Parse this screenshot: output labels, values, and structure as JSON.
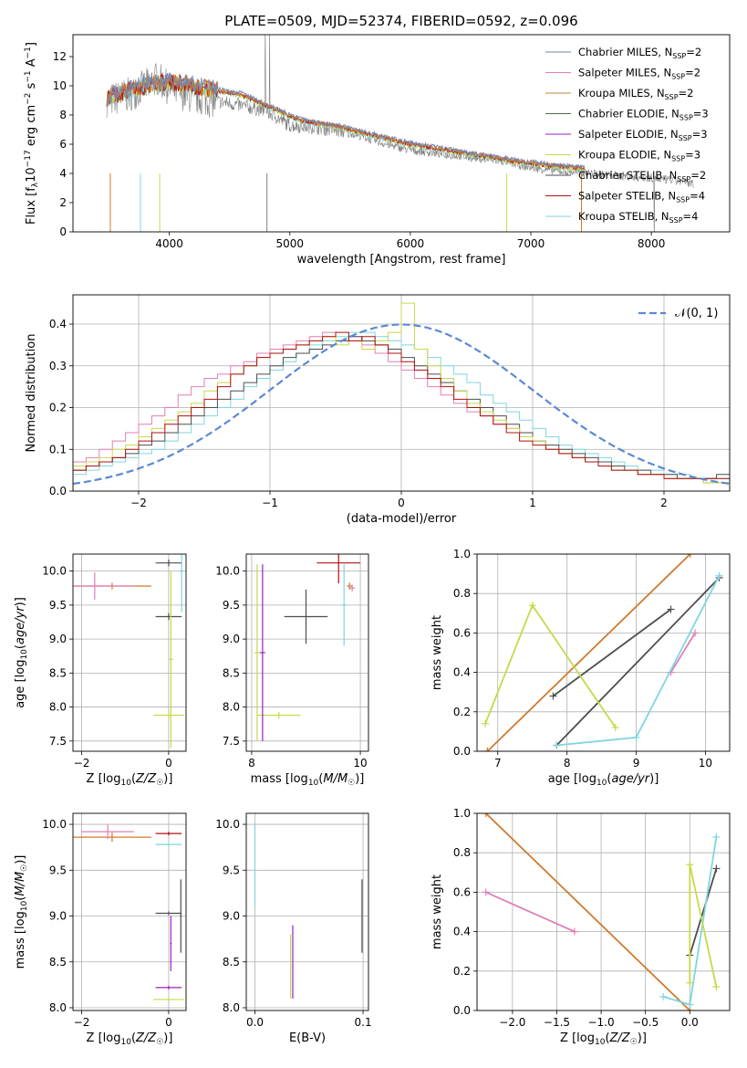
{
  "figure": {
    "title": "PLATE=0509, MJD=52374, FIBERID=0592, z=0.096"
  },
  "colors": {
    "Chabrier MILES": "#6f86b8",
    "Salpeter MILES": "#e07fb4",
    "Kroupa MILES": "#c2853a",
    "Chabrier ELODIE": "#4e6e4e",
    "Salpeter ELODIE": "#9b1fc0",
    "Kroupa ELODIE": "#c8d84a",
    "Chabrier STELIB": "#4d4d4d",
    "Salpeter STELIB": "#b01010",
    "Kroupa STELIB": "#7fd6df",
    "data": "#808080",
    "normal": "#5c88d4",
    "orange": "#d07a2e"
  },
  "chart_data": [
    {
      "id": "spectrum",
      "type": "line",
      "xlabel": "wavelength [Angstrom, rest frame]",
      "ylabel": "Flux [f_λ10^-17 erg cm^-2 s^-1 A^-1]",
      "xlim": [
        3200,
        8650
      ],
      "ylim": [
        0,
        13.5
      ],
      "xticks": [
        "4000",
        "5000",
        "6000",
        "7000",
        "8000"
      ],
      "yticks": [
        "0",
        "2",
        "4",
        "6",
        "8",
        "10",
        "12"
      ],
      "grid": false,
      "legend_position": "upper right",
      "legend": [
        "Chabrier MILES, N_SSP=2",
        "Salpeter MILES, N_SSP=2",
        "Kroupa MILES, N_SSP=2",
        "Chabrier ELODIE, N_SSP=3",
        "Salpeter ELODIE, N_SSP=3",
        "Kroupa ELODIE, N_SSP=3",
        "Chabrier STELIB, N_SSP=2",
        "Salpeter STELIB, N_SSP=4",
        "Kroupa STELIB, N_SSP=4"
      ],
      "data_series": {
        "name": "data",
        "x": [
          3500,
          3700,
          3900,
          4000,
          4200,
          4500,
          4800,
          5000,
          5200,
          5500,
          5800,
          6000,
          6300,
          6600,
          6800,
          7000,
          7200,
          7500,
          7800,
          8000,
          8200,
          8350
        ],
        "y": [
          9.0,
          9.5,
          10.5,
          9.8,
          9.2,
          8.8,
          8.3,
          7.3,
          7.2,
          6.8,
          6.0,
          5.6,
          5.3,
          5.0,
          4.8,
          4.4,
          4.2,
          4.0,
          3.8,
          3.7,
          3.5,
          3.3
        ]
      },
      "model_series": {
        "name": "model",
        "x": [
          3480,
          3700,
          3900,
          4100,
          4300,
          4600,
          4900,
          5100,
          5400,
          5700,
          6000,
          6300,
          6600,
          6900,
          7200,
          7450
        ],
        "y": [
          9.2,
          9.8,
          10.2,
          10.2,
          9.8,
          9.4,
          8.3,
          7.6,
          7.2,
          6.6,
          6.0,
          5.6,
          5.2,
          4.8,
          4.5,
          4.3
        ]
      }
    },
    {
      "id": "residuals",
      "type": "bar",
      "xlabel": "(data-model)/error",
      "ylabel": "Normed distribution",
      "xlim": [
        -2.5,
        2.5
      ],
      "ylim": [
        0,
        0.47
      ],
      "xticks": [
        "−2",
        "−1",
        "0",
        "1",
        "2"
      ],
      "yticks": [
        "0.0",
        "0.1",
        "0.2",
        "0.3",
        "0.4"
      ],
      "grid": true,
      "legend": [
        "𝒩(0, 1)"
      ],
      "bin_centers": [
        -2.45,
        -2.35,
        -2.25,
        -2.15,
        -2.05,
        -1.95,
        -1.85,
        -1.75,
        -1.65,
        -1.55,
        -1.45,
        -1.35,
        -1.25,
        -1.15,
        -1.05,
        -0.95,
        -0.85,
        -0.75,
        -0.65,
        -0.55,
        -0.45,
        -0.35,
        -0.25,
        -0.15,
        -0.05,
        0.05,
        0.15,
        0.25,
        0.35,
        0.45,
        0.55,
        0.65,
        0.75,
        0.85,
        0.95,
        1.05,
        1.15,
        1.25,
        1.35,
        1.45,
        1.55,
        1.65,
        1.75,
        1.85,
        1.95,
        2.05,
        2.15,
        2.25,
        2.35,
        2.45
      ],
      "histograms": [
        {
          "name": "Salpeter MILES",
          "values": [
            0.07,
            0.08,
            0.1,
            0.12,
            0.14,
            0.16,
            0.18,
            0.2,
            0.23,
            0.25,
            0.27,
            0.28,
            0.3,
            0.31,
            0.33,
            0.34,
            0.35,
            0.36,
            0.37,
            0.38,
            0.36,
            0.37,
            0.35,
            0.33,
            0.31,
            0.29,
            0.27,
            0.25,
            0.23,
            0.21,
            0.19,
            0.18,
            0.16,
            0.15,
            0.13,
            0.12,
            0.1,
            0.09,
            0.08,
            0.07,
            0.06,
            0.05,
            0.05,
            0.04,
            0.04,
            0.03,
            0.03,
            0.03,
            0.02,
            0.02
          ]
        },
        {
          "name": "Kroupa STELIB",
          "values": [
            0.04,
            0.05,
            0.06,
            0.07,
            0.08,
            0.09,
            0.1,
            0.12,
            0.14,
            0.16,
            0.18,
            0.2,
            0.22,
            0.25,
            0.27,
            0.29,
            0.31,
            0.33,
            0.35,
            0.36,
            0.37,
            0.38,
            0.38,
            0.37,
            0.36,
            0.35,
            0.34,
            0.32,
            0.3,
            0.28,
            0.26,
            0.23,
            0.21,
            0.19,
            0.17,
            0.15,
            0.13,
            0.11,
            0.1,
            0.09,
            0.08,
            0.07,
            0.06,
            0.05,
            0.05,
            0.04,
            0.04,
            0.03,
            0.03,
            0.03
          ]
        },
        {
          "name": "Chabrier STELIB",
          "values": [
            0.05,
            0.06,
            0.07,
            0.08,
            0.09,
            0.11,
            0.12,
            0.14,
            0.16,
            0.18,
            0.2,
            0.22,
            0.24,
            0.26,
            0.28,
            0.3,
            0.32,
            0.33,
            0.34,
            0.35,
            0.36,
            0.37,
            0.36,
            0.35,
            0.34,
            0.32,
            0.3,
            0.28,
            0.26,
            0.24,
            0.22,
            0.2,
            0.18,
            0.16,
            0.14,
            0.12,
            0.11,
            0.1,
            0.09,
            0.08,
            0.07,
            0.06,
            0.05,
            0.05,
            0.04,
            0.04,
            0.03,
            0.03,
            0.03,
            0.04
          ]
        },
        {
          "name": "Kroupa ELODIE",
          "values": [
            0.06,
            0.07,
            0.08,
            0.1,
            0.11,
            0.13,
            0.15,
            0.17,
            0.19,
            0.21,
            0.24,
            0.26,
            0.28,
            0.3,
            0.32,
            0.33,
            0.34,
            0.35,
            0.36,
            0.37,
            0.35,
            0.36,
            0.34,
            0.36,
            0.38,
            0.45,
            0.34,
            0.3,
            0.27,
            0.24,
            0.21,
            0.19,
            0.17,
            0.15,
            0.13,
            0.12,
            0.1,
            0.09,
            0.08,
            0.07,
            0.06,
            0.05,
            0.05,
            0.04,
            0.04,
            0.03,
            0.03,
            0.03,
            0.02,
            0.02
          ]
        },
        {
          "name": "Salpeter STELIB",
          "values": [
            0.05,
            0.06,
            0.07,
            0.08,
            0.1,
            0.12,
            0.14,
            0.16,
            0.18,
            0.2,
            0.22,
            0.25,
            0.28,
            0.3,
            0.32,
            0.33,
            0.34,
            0.35,
            0.36,
            0.37,
            0.38,
            0.36,
            0.37,
            0.35,
            0.33,
            0.31,
            0.29,
            0.27,
            0.25,
            0.22,
            0.2,
            0.18,
            0.16,
            0.14,
            0.12,
            0.11,
            0.1,
            0.09,
            0.08,
            0.07,
            0.06,
            0.05,
            0.05,
            0.04,
            0.04,
            0.03,
            0.03,
            0.03,
            0.03,
            0.03
          ]
        }
      ],
      "normal_curve": {
        "name": "𝒩(0, 1)",
        "mean": 0,
        "sigma": 1
      }
    },
    {
      "id": "age_vs_Z",
      "type": "scatter",
      "xlabel": "Z [log10(Z/Z☉)]",
      "ylabel": "age [log10(age/yr)]",
      "xlim": [
        -2.2,
        0.4
      ],
      "ylim": [
        7.35,
        10.25
      ],
      "xticks": [
        "−2",
        "0"
      ],
      "yticks": [
        "7.5",
        "8.0",
        "8.5",
        "9.0",
        "9.5",
        "10.0"
      ],
      "grid": true,
      "points": [
        {
          "series": "Kroupa MILES",
          "x": -1.3,
          "y": 9.78,
          "xerr": 0.9,
          "yerr": 0.05
        },
        {
          "series": "Salpeter MILES",
          "x": -1.7,
          "y": 9.78,
          "xerr": 0.9,
          "yerr": 0.2
        },
        {
          "series": "Chabrier STELIB",
          "x": 0.0,
          "y": 10.12,
          "xerr": 0.3,
          "yerr": 0.05
        },
        {
          "series": "Chabrier STELIB",
          "x": 0.0,
          "y": 9.33,
          "xerr": 0.3,
          "yerr": 0.05
        },
        {
          "series": "Kroupa STELIB",
          "x": 0.3,
          "y": 10.0,
          "xerr": 0.05,
          "yerr": 0.6
        },
        {
          "series": "Kroupa ELODIE",
          "x": 0.0,
          "y": 7.88,
          "xerr": 0.35,
          "yerr": 0.05
        },
        {
          "series": "Kroupa ELODIE",
          "x": 0.05,
          "y": 8.7,
          "xerr": 0.05,
          "yerr": 1.3
        }
      ]
    },
    {
      "id": "age_vs_mass",
      "type": "scatter",
      "xlabel": "mass [log10(M/M☉)]",
      "ylabel": "",
      "xlim": [
        7.9,
        10.15
      ],
      "ylim": [
        7.35,
        10.25
      ],
      "xticks": [
        "8",
        "10"
      ],
      "yticks": [
        "7.5",
        "8.0",
        "8.5",
        "9.0",
        "9.5",
        "10.0"
      ],
      "grid": true,
      "points": [
        {
          "series": "Chabrier STELIB",
          "x": 9.0,
          "y": 9.33,
          "xerr": 0.4,
          "yerr": 0.4
        },
        {
          "series": "Salpeter STELIB",
          "x": 9.6,
          "y": 10.12,
          "xerr": 0.4,
          "yerr": 0.3
        },
        {
          "series": "Kroupa ELODIE",
          "x": 8.5,
          "y": 7.88,
          "xerr": 0.4,
          "yerr": 0.05
        },
        {
          "series": "Salpeter MILES",
          "x": 9.85,
          "y": 9.75,
          "xerr": 0.05,
          "yerr": 0.05
        },
        {
          "series": "Kroupa MILES",
          "x": 9.8,
          "y": 9.78,
          "xerr": 0.05,
          "yerr": 0.05
        },
        {
          "series": "Salpeter ELODIE",
          "x": 8.2,
          "y": 8.8,
          "xerr": 0.05,
          "yerr": 1.3
        },
        {
          "series": "Kroupa ELODIE",
          "x": 8.1,
          "y": 8.8,
          "xerr": 0.05,
          "yerr": 1.3
        },
        {
          "series": "Kroupa STELIB",
          "x": 9.7,
          "y": 9.5,
          "xerr": 0.05,
          "yerr": 0.6
        }
      ]
    },
    {
      "id": "weight_vs_age",
      "type": "line",
      "xlabel": "age [log10(age/yr)]",
      "ylabel": "mass weight",
      "xlim": [
        6.7,
        10.35
      ],
      "ylim": [
        0.0,
        1.0
      ],
      "xticks": [
        "7",
        "8",
        "9",
        "10"
      ],
      "yticks": [
        "0.0",
        "0.2",
        "0.4",
        "0.6",
        "0.8",
        "1.0"
      ],
      "grid": true,
      "lines": [
        {
          "series": "Kroupa MILES",
          "x": [
            6.85,
            9.78
          ],
          "y": [
            0.0,
            1.0
          ]
        },
        {
          "series": "Chabrier STELIB",
          "x": [
            7.8,
            9.5
          ],
          "y": [
            0.28,
            0.72
          ]
        },
        {
          "series": "Chabrier STELIB",
          "x": [
            7.85,
            10.2
          ],
          "y": [
            0.03,
            0.88
          ]
        },
        {
          "series": "Salpeter MILES",
          "x": [
            9.5,
            9.85
          ],
          "y": [
            0.4,
            0.6
          ]
        },
        {
          "series": "Kroupa ELODIE",
          "x": [
            6.82,
            7.5,
            8.7
          ],
          "y": [
            0.14,
            0.74,
            0.12
          ]
        },
        {
          "series": "Kroupa STELIB",
          "x": [
            7.85,
            9.0,
            10.2
          ],
          "y": [
            0.03,
            0.07,
            0.89
          ]
        }
      ]
    },
    {
      "id": "mass_vs_Z",
      "type": "scatter",
      "xlabel": "Z [log10(Z/Z☉)]",
      "ylabel": "mass [log10(M/M☉)]",
      "xlim": [
        -2.2,
        0.4
      ],
      "ylim": [
        7.97,
        10.12
      ],
      "xticks": [
        "−2",
        "0"
      ],
      "yticks": [
        "8.0",
        "8.5",
        "9.0",
        "9.5",
        "10.0"
      ],
      "grid": true,
      "points": [
        {
          "series": "Kroupa MILES",
          "x": -1.3,
          "y": 9.86,
          "xerr": 0.9,
          "yerr": 0.05
        },
        {
          "series": "Salpeter MILES",
          "x": -1.4,
          "y": 9.92,
          "xerr": 0.6,
          "yerr": 0.08
        },
        {
          "series": "Salpeter STELIB",
          "x": 0.0,
          "y": 9.9,
          "xerr": 0.3,
          "yerr": 0.02
        },
        {
          "series": "Kroupa STELIB",
          "x": 0.0,
          "y": 9.78,
          "xerr": 0.3,
          "yerr": 0.02
        },
        {
          "series": "Chabrier STELIB",
          "x": 0.0,
          "y": 9.03,
          "xerr": 0.3,
          "yerr": 0.02
        },
        {
          "series": "Salpeter ELODIE",
          "x": 0.0,
          "y": 8.22,
          "xerr": 0.3,
          "yerr": 0.02
        },
        {
          "series": "Kroupa ELODIE",
          "x": 0.0,
          "y": 8.09,
          "xerr": 0.35,
          "yerr": 0.02
        },
        {
          "series": "Chabrier STELIB",
          "x": 0.28,
          "y": 9.0,
          "xerr": 0.02,
          "yerr": 0.4
        },
        {
          "series": "Salpeter ELODIE",
          "x": 0.05,
          "y": 8.7,
          "xerr": 0.02,
          "yerr": 0.3
        }
      ]
    },
    {
      "id": "mass_vs_EBV",
      "type": "scatter",
      "xlabel": "E(B-V)",
      "ylabel": "",
      "xlim": [
        -0.008,
        0.105
      ],
      "ylim": [
        7.97,
        10.12
      ],
      "xticks": [
        "0.0",
        "0.1"
      ],
      "yticks": [
        "8.0",
        "8.5",
        "9.0",
        "9.5",
        "10.0"
      ],
      "grid": true,
      "points": [
        {
          "series": "Kroupa STELIB",
          "x": 0.0,
          "y": 9.55,
          "xerr": 0.0,
          "yerr": 0.45
        },
        {
          "series": "Salpeter ELODIE",
          "x": 0.035,
          "y": 8.5,
          "xerr": 0.0,
          "yerr": 0.4
        },
        {
          "series": "Kroupa ELODIE",
          "x": 0.033,
          "y": 8.45,
          "xerr": 0.0,
          "yerr": 0.35
        },
        {
          "series": "Chabrier STELIB",
          "x": 0.099,
          "y": 9.0,
          "xerr": 0.0,
          "yerr": 0.4
        }
      ]
    },
    {
      "id": "weight_vs_Z",
      "type": "line",
      "xlabel": "Z [log10(Z/Z☉)]",
      "ylabel": "mass weight",
      "xlim": [
        -2.4,
        0.45
      ],
      "ylim": [
        0.0,
        1.0
      ],
      "xticks": [
        "−2.0",
        "−1.5",
        "−1.0",
        "−0.5",
        "0.0"
      ],
      "yticks": [
        "0.0",
        "0.2",
        "0.4",
        "0.6",
        "0.8",
        "1.0"
      ],
      "grid": true,
      "lines": [
        {
          "series": "Kroupa MILES",
          "x": [
            -2.3,
            0.0
          ],
          "y": [
            1.0,
            0.0
          ]
        },
        {
          "series": "Salpeter MILES",
          "x": [
            -2.3,
            -1.3
          ],
          "y": [
            0.6,
            0.4
          ]
        },
        {
          "series": "Chabrier STELIB",
          "x": [
            0.0,
            0.3
          ],
          "y": [
            0.28,
            0.72
          ]
        },
        {
          "series": "Kroupa STELIB",
          "x": [
            -0.3,
            0.0,
            0.3
          ],
          "y": [
            0.07,
            0.03,
            0.88
          ]
        },
        {
          "series": "Kroupa ELODIE",
          "x": [
            0.0,
            0.0,
            0.3
          ],
          "y": [
            0.14,
            0.74,
            0.12
          ]
        }
      ]
    }
  ]
}
